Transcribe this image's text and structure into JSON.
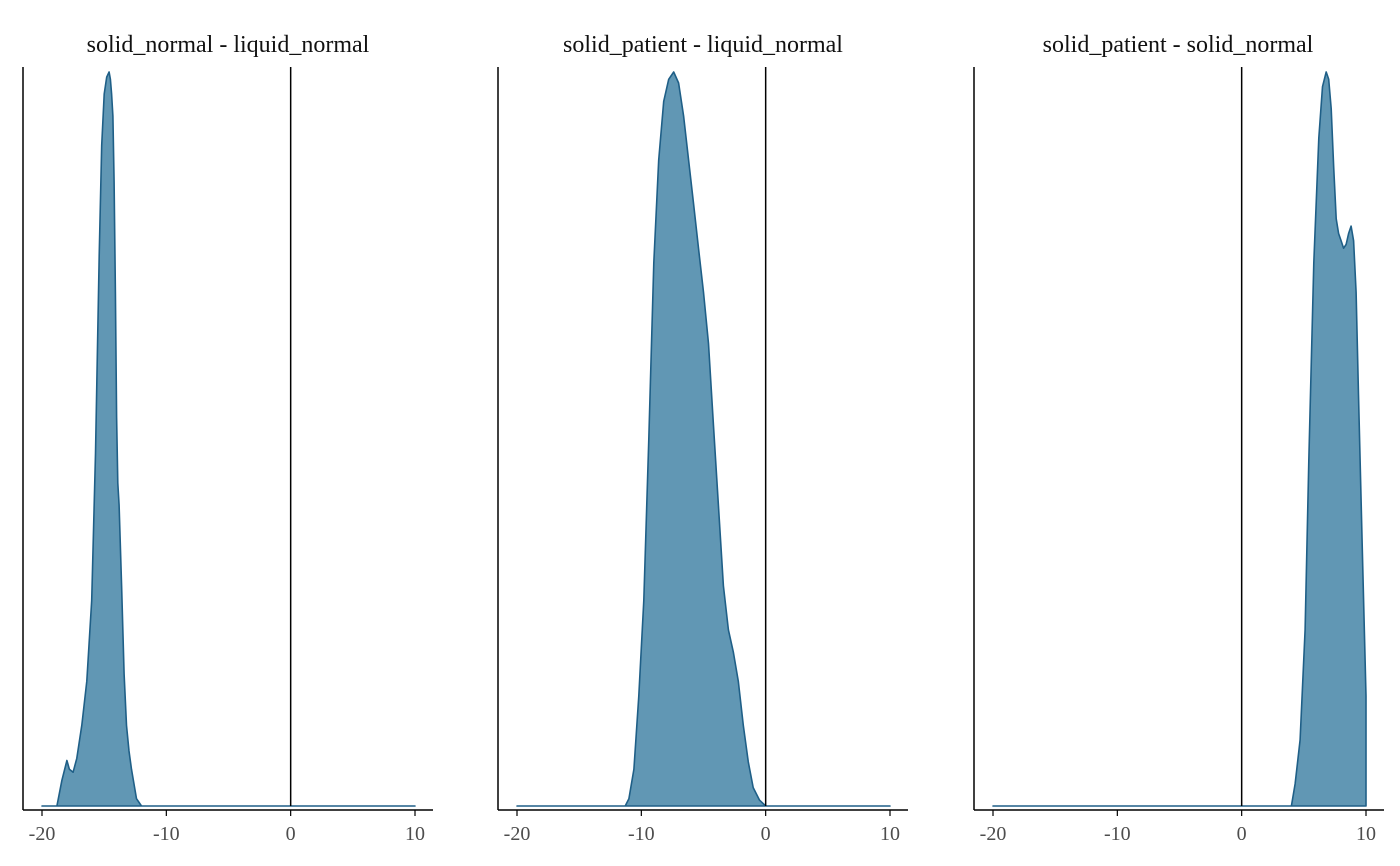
{
  "chart_data": [
    {
      "type": "area",
      "title": "solid_normal - liquid_normal",
      "xlim": [
        -20,
        10
      ],
      "xticks": [
        -20,
        -10,
        0,
        10
      ],
      "xtick_labels": [
        "-20",
        "-10",
        "0",
        "10"
      ],
      "vline": 0,
      "density": {
        "x": [
          -20,
          -18.8,
          -18.4,
          -18.0,
          -17.8,
          -17.5,
          -17.2,
          -16.8,
          -16.4,
          -16.0,
          -15.7,
          -15.4,
          -15.2,
          -15.0,
          -14.8,
          -14.6,
          -14.5,
          -14.4,
          -14.3,
          -14.2,
          -14.1,
          -14.0,
          -13.9,
          -13.8,
          -13.6,
          -13.4,
          -13.2,
          -13.0,
          -12.8,
          -12.6,
          -12.4,
          -12.0,
          10
        ],
        "y": [
          0,
          0,
          0.035,
          0.062,
          0.05,
          0.046,
          0.065,
          0.11,
          0.17,
          0.28,
          0.48,
          0.75,
          0.9,
          0.97,
          0.993,
          1.0,
          0.99,
          0.97,
          0.94,
          0.85,
          0.7,
          0.53,
          0.44,
          0.41,
          0.3,
          0.18,
          0.11,
          0.075,
          0.05,
          0.03,
          0.01,
          0,
          0
        ]
      }
    },
    {
      "type": "area",
      "title": "solid_patient - liquid_normal",
      "xlim": [
        -20,
        10
      ],
      "xticks": [
        -20,
        -10,
        0,
        10
      ],
      "xtick_labels": [
        "-20",
        "-10",
        "0",
        "10"
      ],
      "vline": 0,
      "density": {
        "x": [
          -20,
          -11.3,
          -11.0,
          -10.6,
          -10.2,
          -9.8,
          -9.4,
          -9.0,
          -8.6,
          -8.2,
          -7.8,
          -7.4,
          -7.0,
          -6.6,
          -6.2,
          -5.8,
          -5.4,
          -5.0,
          -4.6,
          -4.2,
          -3.8,
          -3.4,
          -3.0,
          -2.6,
          -2.2,
          -1.8,
          -1.4,
          -1.0,
          -0.5,
          0,
          10
        ],
        "y": [
          0,
          0,
          0.01,
          0.05,
          0.15,
          0.28,
          0.5,
          0.74,
          0.88,
          0.96,
          0.99,
          1.0,
          0.985,
          0.94,
          0.88,
          0.82,
          0.76,
          0.7,
          0.63,
          0.52,
          0.41,
          0.3,
          0.24,
          0.21,
          0.17,
          0.11,
          0.06,
          0.025,
          0.008,
          0,
          0
        ]
      }
    },
    {
      "type": "area",
      "title": "solid_patient - solid_normal",
      "xlim": [
        -20,
        10
      ],
      "xticks": [
        -20,
        -10,
        0,
        10
      ],
      "xtick_labels": [
        "-20",
        "-10",
        "0",
        "10"
      ],
      "vline": 0,
      "density": {
        "x": [
          -20,
          4.0,
          4.3,
          4.7,
          5.1,
          5.4,
          5.8,
          6.2,
          6.5,
          6.8,
          7.0,
          7.2,
          7.4,
          7.6,
          7.8,
          8.0,
          8.2,
          8.4,
          8.6,
          8.8,
          9.0,
          9.2,
          9.4,
          9.7,
          10.0,
          10
        ],
        "y": [
          0,
          0,
          0.03,
          0.09,
          0.24,
          0.47,
          0.74,
          0.91,
          0.98,
          1.0,
          0.99,
          0.95,
          0.87,
          0.8,
          0.78,
          0.77,
          0.76,
          0.765,
          0.78,
          0.79,
          0.77,
          0.7,
          0.56,
          0.35,
          0.15,
          0
        ]
      }
    }
  ],
  "colors": {
    "fill": "#6197b4",
    "stroke": "#1f5f87",
    "axis": "#000000"
  }
}
